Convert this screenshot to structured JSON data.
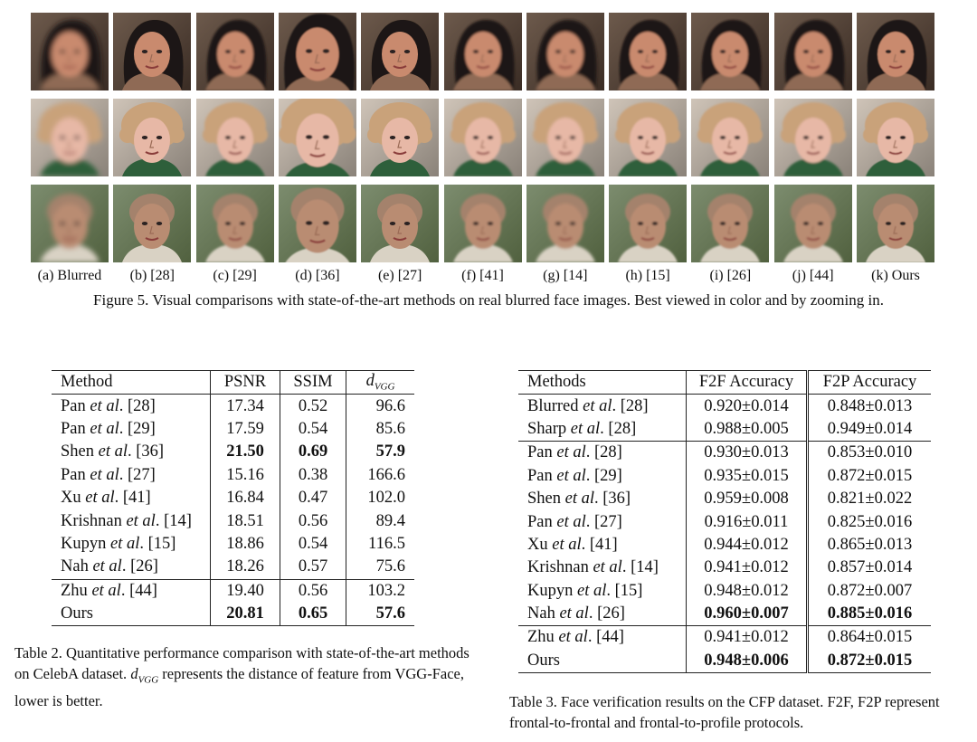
{
  "figure": {
    "columns": [
      {
        "label": "(a) Blurred"
      },
      {
        "label": "(b) [28]"
      },
      {
        "label": "(c) [29]"
      },
      {
        "label": "(d) [36]"
      },
      {
        "label": "(e) [27]"
      },
      {
        "label": "(f) [41]"
      },
      {
        "label": "(g) [14]"
      },
      {
        "label": "(h) [15]"
      },
      {
        "label": "(i) [26]"
      },
      {
        "label": "(j) [44]"
      },
      {
        "label": "(k) Ours"
      }
    ],
    "rows": [
      {
        "subject": "woman with dark hair"
      },
      {
        "subject": "girl with light curly hair"
      },
      {
        "subject": "older bald man"
      }
    ],
    "caption": "Figure 5. Visual comparisons with state-of-the-art methods on real blurred face images. Best viewed in color and by zooming in."
  },
  "table2": {
    "headers": {
      "method": "Method",
      "psnr": "PSNR",
      "ssim": "SSIM",
      "dvgg_base": "d",
      "dvgg_sub": "VGG"
    },
    "rows": [
      {
        "name": "Pan",
        "etal": "et al",
        "ref": ". [28]",
        "psnr": "17.34",
        "ssim": "0.52",
        "dvgg": "96.6",
        "bold": false
      },
      {
        "name": "Pan",
        "etal": "et al",
        "ref": ". [29]",
        "psnr": "17.59",
        "ssim": "0.54",
        "dvgg": "85.6",
        "bold": false
      },
      {
        "name": "Shen",
        "etal": "et al",
        "ref": ". [36]",
        "psnr": "21.50",
        "ssim": "0.69",
        "dvgg": "57.9",
        "bold": true
      },
      {
        "name": "Pan",
        "etal": "et al",
        "ref": ". [27]",
        "psnr": "15.16",
        "ssim": "0.38",
        "dvgg": "166.6",
        "bold": false
      },
      {
        "name": "Xu",
        "etal": "et al",
        "ref": ". [41]",
        "psnr": "16.84",
        "ssim": "0.47",
        "dvgg": "102.0",
        "bold": false
      },
      {
        "name": "Krishnan",
        "etal": "et al",
        "ref": ". [14]",
        "psnr": "18.51",
        "ssim": "0.56",
        "dvgg": "89.4",
        "bold": false
      },
      {
        "name": "Kupyn",
        "etal": "et al",
        "ref": ". [15]",
        "psnr": "18.86",
        "ssim": "0.54",
        "dvgg": "116.5",
        "bold": false
      },
      {
        "name": "Nah",
        "etal": "et al",
        "ref": ". [26]",
        "psnr": "18.26",
        "ssim": "0.57",
        "dvgg": "75.6",
        "bold": false
      },
      {
        "name": "Zhu",
        "etal": "et al",
        "ref": ". [44]",
        "psnr": "19.40",
        "ssim": "0.56",
        "dvgg": "103.2",
        "bold": false
      },
      {
        "name": "Ours",
        "etal": "",
        "ref": "",
        "psnr": "20.81",
        "ssim": "0.65",
        "dvgg": "57.6",
        "bold": true
      }
    ],
    "caption_1": "Table 2. Quantitative performance comparison with state-of-the-art methods on CelebA dataset. ",
    "caption_math_base": "d",
    "caption_math_sub": "VGG",
    "caption_2": " represents the distance of feature from VGG-Face, lower is better."
  },
  "table3": {
    "headers": {
      "method": "Methods",
      "f2f": "F2F Accuracy",
      "f2p": "F2P Accuracy"
    },
    "rows": [
      {
        "name": "Blurred",
        "etal": "et al",
        "ref": ". [28]",
        "f2f": "0.920±0.014",
        "f2p": "0.848±0.013",
        "bold_f2f": false,
        "bold_f2p": false
      },
      {
        "name": "Sharp",
        "etal": "et al",
        "ref": ". [28]",
        "f2f": "0.988±0.005",
        "f2p": "0.949±0.014",
        "bold_f2f": false,
        "bold_f2p": false
      },
      {
        "name": "Pan",
        "etal": "et al",
        "ref": ". [28]",
        "f2f": "0.930±0.013",
        "f2p": "0.853±0.010",
        "bold_f2f": false,
        "bold_f2p": false
      },
      {
        "name": "Pan",
        "etal": "et al",
        "ref": ". [29]",
        "f2f": "0.935±0.015",
        "f2p": "0.872±0.015",
        "bold_f2f": false,
        "bold_f2p": false
      },
      {
        "name": "Shen",
        "etal": "et al",
        "ref": ". [36]",
        "f2f": "0.959±0.008",
        "f2p": "0.821±0.022",
        "bold_f2f": false,
        "bold_f2p": false
      },
      {
        "name": "Pan",
        "etal": "et al",
        "ref": ". [27]",
        "f2f": "0.916±0.011",
        "f2p": "0.825±0.016",
        "bold_f2f": false,
        "bold_f2p": false
      },
      {
        "name": "Xu",
        "etal": "et al",
        "ref": ". [41]",
        "f2f": "0.944±0.012",
        "f2p": "0.865±0.013",
        "bold_f2f": false,
        "bold_f2p": false
      },
      {
        "name": "Krishnan",
        "etal": "et al",
        "ref": ". [14]",
        "f2f": "0.941±0.012",
        "f2p": "0.857±0.014",
        "bold_f2f": false,
        "bold_f2p": false
      },
      {
        "name": "Kupyn",
        "etal": "et al",
        "ref": ". [15]",
        "f2f": "0.948±0.012",
        "f2p": "0.872±0.007",
        "bold_f2f": false,
        "bold_f2p": false
      },
      {
        "name": "Nah",
        "etal": "et al",
        "ref": ". [26]",
        "f2f": "0.960±0.007",
        "f2p": "0.885±0.016",
        "bold_f2f": true,
        "bold_f2p": true
      },
      {
        "name": "Zhu",
        "etal": "et al",
        "ref": ". [44]",
        "f2f": "0.941±0.012",
        "f2p": "0.864±0.015",
        "bold_f2f": false,
        "bold_f2p": false
      },
      {
        "name": "Ours",
        "etal": "",
        "ref": "",
        "f2f": "0.948±0.006",
        "f2p": "0.872±0.015",
        "bold_f2f": true,
        "bold_f2p": true
      }
    ],
    "caption": "Table 3. Face verification results on the CFP dataset. F2F, F2P represent frontal-to-frontal and frontal-to-profile protocols."
  }
}
